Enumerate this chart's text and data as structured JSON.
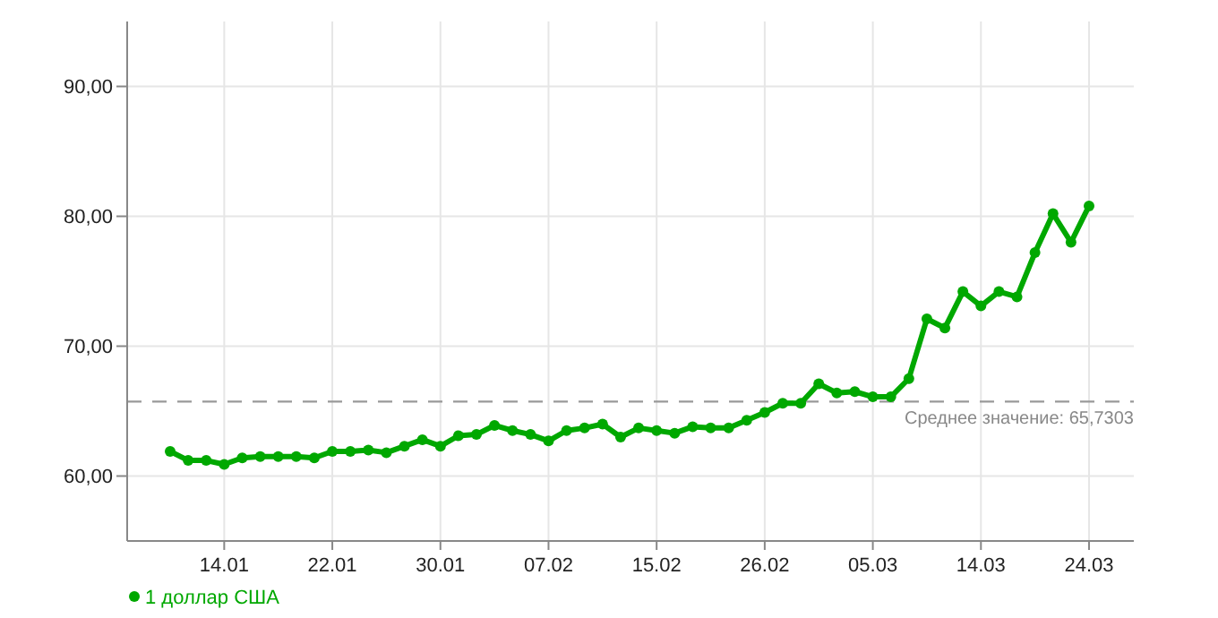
{
  "chart_data": {
    "type": "line",
    "categories": [
      null,
      null,
      null,
      "14.01",
      null,
      null,
      null,
      null,
      null,
      "22.01",
      null,
      null,
      null,
      null,
      null,
      "30.01",
      null,
      null,
      null,
      null,
      null,
      "07.02",
      null,
      null,
      null,
      null,
      null,
      "15.02",
      null,
      null,
      null,
      null,
      null,
      "26.02",
      null,
      null,
      null,
      null,
      null,
      "05.03",
      null,
      null,
      null,
      null,
      null,
      "14.03",
      null,
      null,
      null,
      null,
      null,
      "24.03"
    ],
    "series": [
      {
        "name": "1 доллар США",
        "color": "#00a800",
        "values": [
          61.9,
          61.2,
          61.2,
          60.9,
          61.4,
          61.5,
          61.5,
          61.5,
          61.4,
          61.9,
          61.9,
          62.0,
          61.8,
          62.3,
          62.8,
          62.3,
          63.1,
          63.2,
          63.9,
          63.5,
          63.2,
          62.7,
          63.5,
          63.7,
          64.0,
          63.0,
          63.7,
          63.5,
          63.3,
          63.8,
          63.7,
          63.7,
          64.3,
          64.9,
          65.6,
          65.6,
          67.1,
          66.4,
          66.5,
          66.1,
          66.1,
          67.5,
          72.1,
          71.4,
          74.2,
          73.1,
          74.2,
          73.8,
          77.2,
          80.2,
          78.0,
          80.8
        ]
      }
    ],
    "ylim": [
      55,
      95
    ],
    "yticks": [
      {
        "value": 60,
        "label": "60,00"
      },
      {
        "value": 70,
        "label": "70,00"
      },
      {
        "value": 80,
        "label": "80,00"
      },
      {
        "value": 90,
        "label": "90,00"
      }
    ],
    "ref_lines": [
      {
        "axis": "y",
        "value": 65.7303,
        "label": "Среднее значение: 65,7303",
        "color": "#999999",
        "line_style": "dashed"
      }
    ],
    "grid": true,
    "legend": "bottom left",
    "marker": "circle",
    "line_style": "solid"
  }
}
